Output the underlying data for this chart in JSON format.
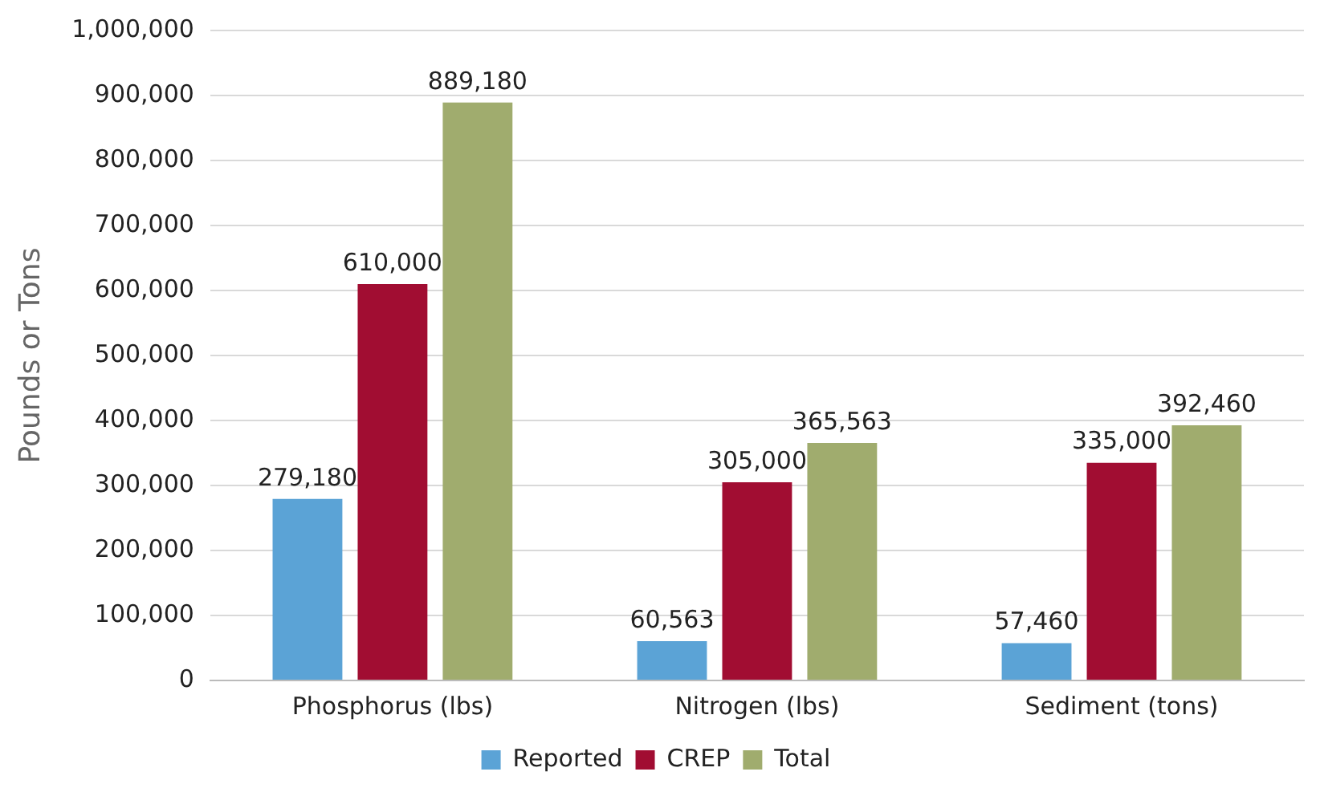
{
  "chart_data": {
    "type": "bar",
    "ylabel": "Pounds or Tons",
    "categories": [
      "Phosphorus (lbs)",
      "Nitrogen (lbs)",
      "Sediment (tons)"
    ],
    "series": [
      {
        "name": "Reported",
        "color": "#5ba3d6",
        "values": [
          279180,
          60563,
          57460
        ],
        "value_labels": [
          "279,180",
          "60,563",
          "57,460"
        ]
      },
      {
        "name": "CREP",
        "color": "#a10d32",
        "values": [
          610000,
          305000,
          335000
        ],
        "value_labels": [
          "610,000",
          "305,000",
          "335,000"
        ]
      },
      {
        "name": "Total",
        "color": "#a0ac6e",
        "values": [
          889180,
          365563,
          392460
        ],
        "value_labels": [
          "889,180",
          "365,563",
          "392,460"
        ]
      }
    ],
    "ylim": [
      0,
      1000000
    ],
    "yticks": [
      0,
      {
        "value": 100000,
        "label": "100,000"
      },
      {
        "value": 200000,
        "label": "200,000"
      },
      {
        "value": 300000,
        "label": "300,000"
      },
      {
        "value": 400000,
        "label": "400,000"
      },
      {
        "value": 500000,
        "label": "500,000"
      },
      {
        "value": 600000,
        "label": "600,000"
      },
      {
        "value": 700000,
        "label": "700,000"
      },
      {
        "value": 800000,
        "label": "800,000"
      },
      {
        "value": 900000,
        "label": "900,000"
      },
      {
        "value": 1000000,
        "label": "1,000,000"
      }
    ],
    "grid": "y",
    "legend": "bottom"
  }
}
